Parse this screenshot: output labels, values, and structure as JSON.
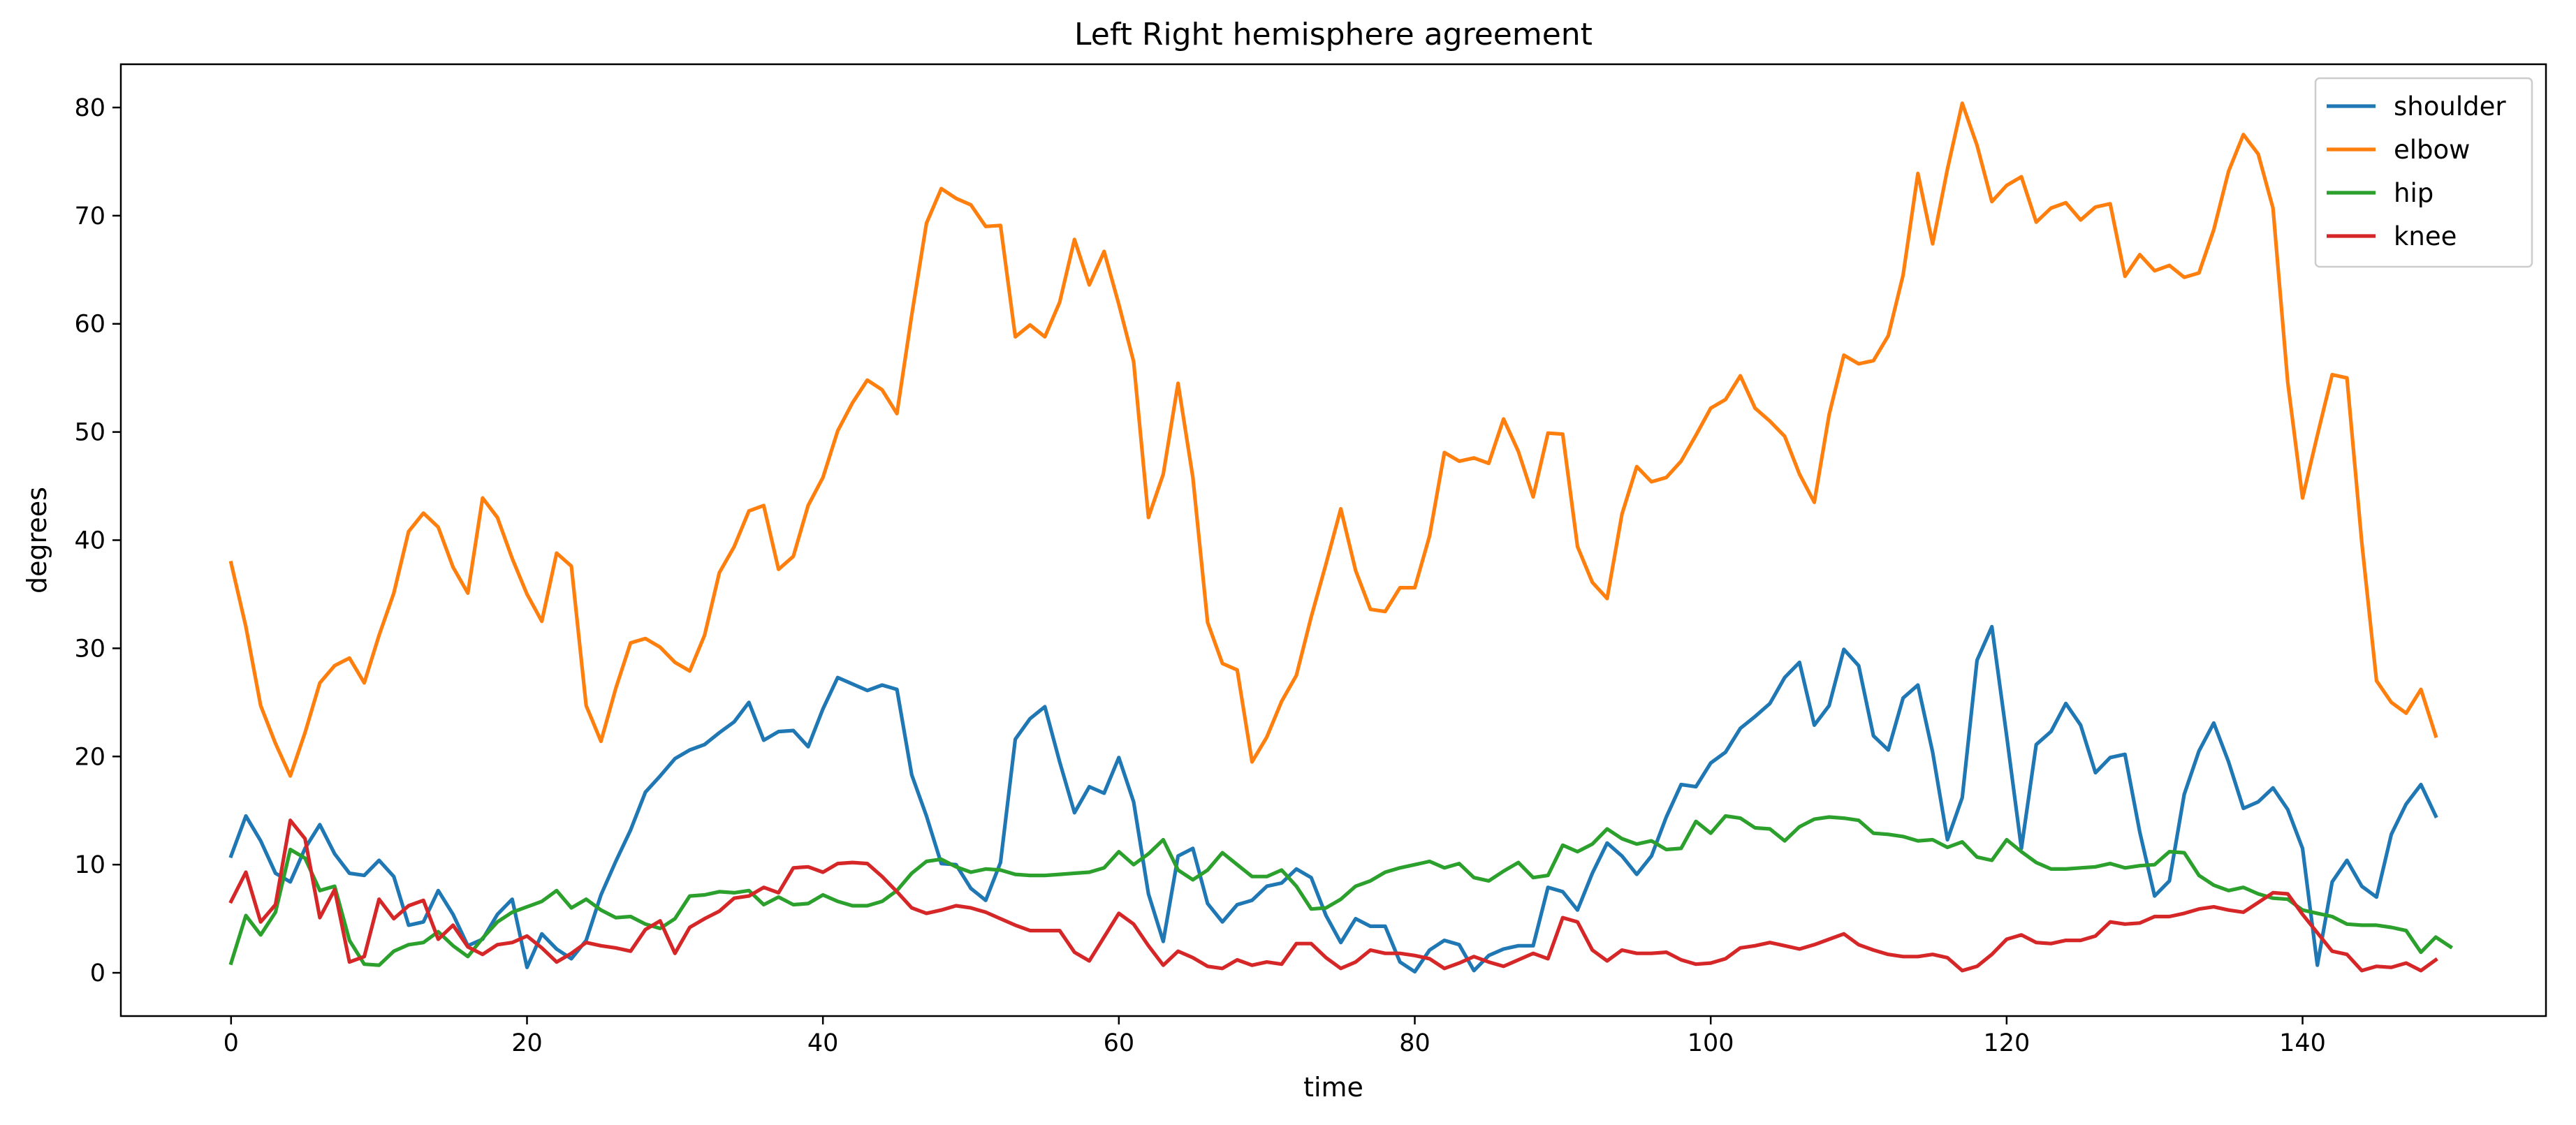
{
  "chart_data": {
    "type": "line",
    "title": "Left Right hemisphere agreement",
    "xlabel": "time",
    "ylabel": "degrees",
    "xlim": [
      -7.45,
      156.45
    ],
    "ylim": [
      -4,
      84
    ],
    "xticks": [
      0,
      20,
      40,
      60,
      80,
      100,
      120,
      140
    ],
    "yticks": [
      0,
      10,
      20,
      30,
      40,
      50,
      60,
      70,
      80
    ],
    "grid": false,
    "legend": "upper right",
    "series": [
      {
        "name": "shoulder",
        "color": "#1f77b4",
        "values": [
          10.8,
          14.5,
          12.2,
          9.2,
          8.4,
          11.5,
          13.7,
          11.0,
          9.2,
          9.0,
          10.4,
          8.9,
          4.4,
          4.7,
          7.6,
          5.4,
          2.5,
          3.1,
          5.4,
          6.8,
          0.5,
          3.6,
          2.2,
          1.3,
          3.0,
          7.2,
          10.3,
          13.2,
          16.7,
          18.2,
          19.8,
          20.6,
          21.1,
          22.2,
          23.2,
          25.0,
          21.5,
          22.3,
          22.4,
          20.9,
          24.4,
          27.3,
          26.7,
          26.1,
          26.6,
          26.2,
          18.3,
          14.5,
          10.1,
          10.0,
          7.8,
          6.7,
          10.2,
          21.6,
          23.5,
          24.6,
          19.5,
          14.8,
          17.2,
          16.6,
          19.9,
          15.8,
          7.3,
          2.9,
          10.8,
          11.5,
          6.4,
          4.7,
          6.3,
          6.7,
          8.0,
          8.3,
          9.6,
          8.8,
          5.3,
          2.8,
          5.0,
          4.3,
          4.3,
          1.0,
          0.1,
          2.1,
          3.0,
          2.6,
          0.2,
          1.6,
          2.2,
          2.5,
          2.5,
          7.9,
          7.5,
          5.8,
          9.2,
          12.0,
          10.8,
          9.1,
          10.8,
          14.4,
          17.4,
          17.2,
          19.4,
          20.4,
          22.6,
          23.7,
          24.9,
          27.3,
          28.7,
          22.9,
          24.7,
          29.9,
          28.4,
          21.9,
          20.6,
          25.4,
          26.6,
          20.4,
          12.3,
          16.2,
          28.9,
          32.0,
          21.9,
          11.5,
          21.1,
          22.3,
          24.9,
          22.9,
          18.5,
          19.9,
          20.2,
          13.0,
          7.1,
          8.5,
          16.5,
          20.5,
          23.1,
          19.5,
          15.2,
          15.8,
          17.1,
          15.1,
          11.5,
          0.7,
          8.4,
          10.4,
          8.0,
          7.0,
          12.8,
          15.6,
          17.4,
          14.5
        ]
      },
      {
        "name": "elbow",
        "color": "#ff7f0e",
        "values": [
          37.9,
          32.0,
          24.7,
          21.2,
          18.2,
          22.2,
          26.8,
          28.4,
          29.1,
          26.8,
          31.2,
          35.1,
          40.8,
          42.5,
          41.2,
          37.5,
          35.1,
          43.9,
          42.1,
          38.3,
          35.0,
          32.5,
          38.8,
          37.6,
          24.7,
          21.4,
          26.3,
          30.5,
          30.9,
          30.1,
          28.7,
          27.9,
          31.2,
          37.0,
          39.4,
          42.7,
          43.2,
          37.3,
          38.5,
          43.2,
          45.8,
          50.1,
          52.7,
          54.8,
          53.9,
          51.7,
          60.8,
          69.3,
          72.5,
          71.6,
          71.0,
          69.0,
          69.1,
          58.8,
          59.9,
          58.8,
          62.0,
          67.8,
          63.6,
          66.7,
          61.8,
          56.5,
          42.1,
          46.1,
          54.5,
          45.8,
          32.4,
          28.6,
          28.0,
          19.5,
          21.8,
          25.1,
          27.5,
          32.9,
          37.8,
          42.9,
          37.2,
          33.6,
          33.4,
          35.6,
          35.6,
          40.4,
          48.1,
          47.3,
          47.6,
          47.1,
          51.2,
          48.2,
          44.0,
          49.9,
          49.8,
          39.4,
          36.1,
          34.6,
          42.4,
          46.8,
          45.4,
          45.8,
          47.3,
          49.7,
          52.2,
          53.0,
          55.2,
          52.2,
          51.0,
          49.6,
          46.1,
          43.5,
          51.6,
          57.1,
          56.3,
          56.6,
          58.9,
          64.5,
          73.9,
          67.4,
          74.3,
          80.4,
          76.5,
          71.3,
          72.8,
          73.6,
          69.4,
          70.7,
          71.2,
          69.6,
          70.8,
          71.1,
          64.4,
          66.4,
          64.9,
          65.4,
          64.3,
          64.7,
          68.7,
          74.1,
          77.5,
          75.7,
          70.7,
          54.6,
          43.9,
          49.7,
          55.3,
          55.0,
          39.8,
          27.0,
          25.0,
          24.0,
          26.2,
          21.9
        ]
      },
      {
        "name": "hip",
        "color": "#2ca02c",
        "values": [
          0.9,
          5.3,
          3.5,
          5.6,
          11.4,
          10.6,
          7.6,
          8.0,
          3.0,
          0.8,
          0.7,
          2.0,
          2.6,
          2.8,
          3.8,
          2.5,
          1.5,
          3.2,
          4.7,
          5.6,
          6.1,
          6.6,
          7.6,
          6.0,
          6.8,
          5.8,
          5.1,
          5.2,
          4.5,
          4.1,
          5.0,
          7.1,
          7.2,
          7.5,
          7.4,
          7.6,
          6.3,
          7.0,
          6.3,
          6.4,
          7.2,
          6.6,
          6.2,
          6.2,
          6.6,
          7.6,
          9.2,
          10.3,
          10.5,
          9.8,
          9.3,
          9.6,
          9.5,
          9.1,
          9.0,
          9.0,
          9.1,
          9.2,
          9.3,
          9.7,
          11.2,
          10.0,
          11.0,
          12.3,
          9.5,
          8.6,
          9.5,
          11.1,
          10.0,
          8.9,
          8.9,
          9.5,
          8.0,
          5.9,
          6.0,
          6.8,
          8.0,
          8.5,
          9.3,
          9.7,
          10.0,
          10.3,
          9.7,
          10.1,
          8.8,
          8.5,
          9.4,
          10.2,
          8.8,
          9.0,
          11.8,
          11.2,
          11.9,
          13.3,
          12.4,
          11.9,
          12.2,
          11.4,
          11.5,
          14.0,
          12.9,
          14.5,
          14.3,
          13.4,
          13.3,
          12.2,
          13.5,
          14.2,
          14.4,
          14.3,
          14.1,
          12.9,
          12.8,
          12.6,
          12.2,
          12.3,
          11.6,
          12.1,
          10.7,
          10.4,
          12.3,
          11.2,
          10.2,
          9.6,
          9.6,
          9.7,
          9.8,
          10.1,
          9.7,
          9.9,
          10.0,
          11.2,
          11.1,
          9.0,
          8.1,
          7.6,
          7.9,
          7.3,
          6.9,
          6.8,
          5.8,
          5.5,
          5.2,
          4.5,
          4.4,
          4.4,
          4.2,
          3.9,
          1.9,
          3.3,
          2.4
        ]
      },
      {
        "name": "knee",
        "color": "#d62728",
        "values": [
          6.6,
          9.3,
          4.7,
          6.3,
          14.1,
          12.4,
          5.1,
          7.7,
          1.0,
          1.5,
          6.8,
          5.0,
          6.2,
          6.7,
          3.1,
          4.4,
          2.4,
          1.7,
          2.6,
          2.8,
          3.4,
          2.3,
          1.0,
          1.8,
          2.8,
          2.5,
          2.3,
          2.0,
          4.0,
          4.8,
          1.8,
          4.2,
          5.0,
          5.7,
          6.9,
          7.1,
          7.9,
          7.4,
          9.7,
          9.8,
          9.3,
          10.1,
          10.2,
          10.1,
          8.9,
          7.5,
          6.0,
          5.5,
          5.8,
          6.2,
          6.0,
          5.6,
          5.0,
          4.4,
          3.9,
          3.9,
          3.9,
          1.9,
          1.1,
          3.3,
          5.5,
          4.5,
          2.5,
          0.7,
          2.0,
          1.4,
          0.6,
          0.4,
          1.2,
          0.7,
          1.0,
          0.8,
          2.7,
          2.7,
          1.4,
          0.4,
          1.0,
          2.1,
          1.8,
          1.8,
          1.6,
          1.3,
          0.4,
          0.9,
          1.5,
          1.0,
          0.6,
          1.2,
          1.8,
          1.3,
          5.1,
          4.7,
          2.1,
          1.1,
          2.1,
          1.8,
          1.8,
          1.9,
          1.2,
          0.8,
          0.9,
          1.3,
          2.3,
          2.5,
          2.8,
          2.5,
          2.2,
          2.6,
          3.1,
          3.6,
          2.6,
          2.1,
          1.7,
          1.5,
          1.5,
          1.7,
          1.4,
          0.2,
          0.6,
          1.7,
          3.1,
          3.5,
          2.8,
          2.7,
          3.0,
          3.0,
          3.4,
          4.7,
          4.5,
          4.6,
          5.2,
          5.2,
          5.5,
          5.9,
          6.1,
          5.8,
          5.6,
          6.5,
          7.4,
          7.3,
          5.4,
          3.7,
          2.0,
          1.7,
          0.2,
          0.6,
          0.5,
          0.9,
          0.2,
          1.2
        ]
      }
    ]
  }
}
